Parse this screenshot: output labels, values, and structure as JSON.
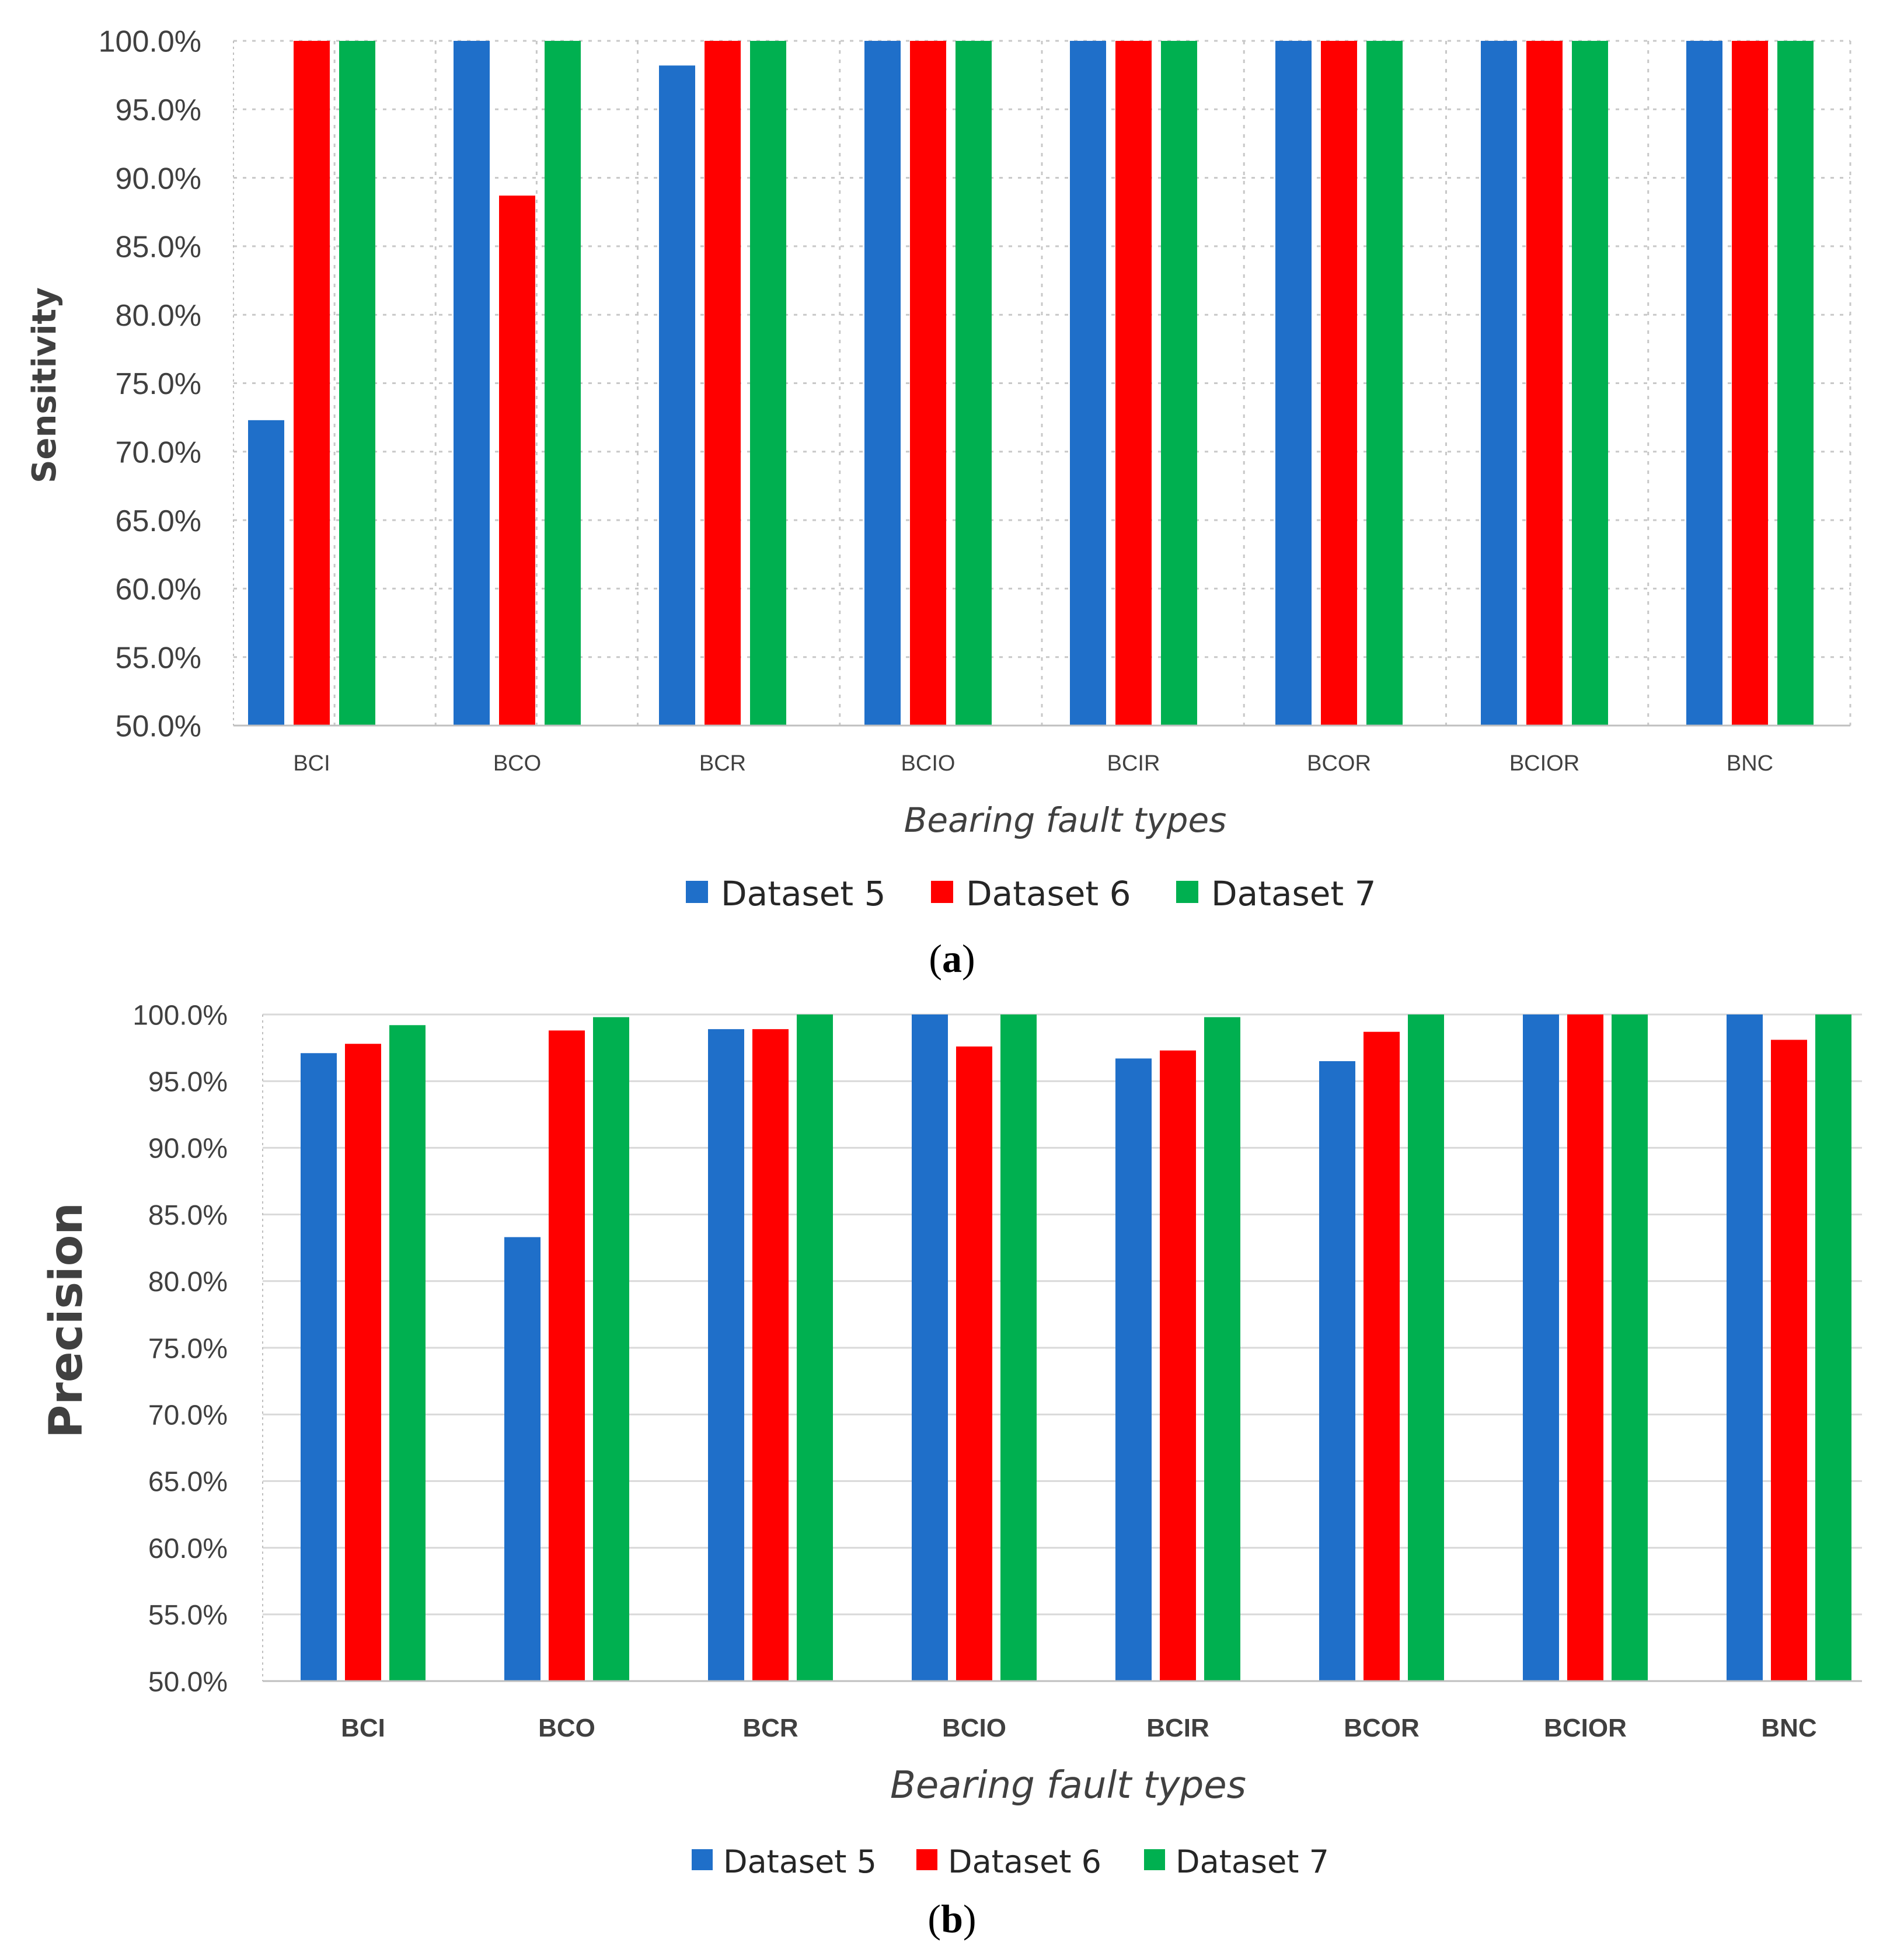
{
  "chart_data": [
    {
      "type": "bar",
      "panel_label": "a",
      "title": "",
      "xlabel": "Bearing fault types",
      "ylabel": "Sensitivity",
      "ylim": [
        0.5,
        1.0
      ],
      "ytick_step": 0.05,
      "ytick_labels": [
        "50.0%",
        "55.0%",
        "60.0%",
        "65.0%",
        "70.0%",
        "75.0%",
        "80.0%",
        "85.0%",
        "90.0%",
        "95.0%",
        "100.0%"
      ],
      "grid": true,
      "legend_position": "bottom",
      "categories": [
        "BCI",
        "BCO",
        "BCR",
        "BCIO",
        "BCIR",
        "BCOR",
        "BCIOR",
        "BNC"
      ],
      "series": [
        {
          "name": "Dataset 5",
          "color": "#1F6FC9",
          "values": [
            0.723,
            1.0,
            0.982,
            1.0,
            1.0,
            1.0,
            1.0,
            1.0
          ]
        },
        {
          "name": "Dataset 6",
          "color": "#FF0000",
          "values": [
            1.0,
            0.887,
            1.0,
            1.0,
            1.0,
            1.0,
            1.0,
            1.0
          ]
        },
        {
          "name": "Dataset 7",
          "color": "#00B050",
          "values": [
            1.0,
            1.0,
            1.0,
            1.0,
            1.0,
            1.0,
            1.0,
            1.0
          ]
        }
      ]
    },
    {
      "type": "bar",
      "panel_label": "b",
      "title": "",
      "xlabel": "Bearing fault types",
      "ylabel": "Precision",
      "ylim": [
        0.5,
        1.0
      ],
      "ytick_step": 0.05,
      "ytick_labels": [
        "50.0%",
        "55.0%",
        "60.0%",
        "65.0%",
        "70.0%",
        "75.0%",
        "80.0%",
        "85.0%",
        "90.0%",
        "95.0%",
        "100.0%"
      ],
      "grid": true,
      "legend_position": "bottom",
      "categories": [
        "BCI",
        "BCO",
        "BCR",
        "BCIO",
        "BCIR",
        "BCOR",
        "BCIOR",
        "BNC"
      ],
      "series": [
        {
          "name": "Dataset 5",
          "color": "#1F6FC9",
          "values": [
            0.971,
            0.833,
            0.989,
            1.0,
            0.967,
            0.965,
            1.0,
            1.0
          ]
        },
        {
          "name": "Dataset 6",
          "color": "#FF0000",
          "values": [
            0.978,
            0.988,
            0.989,
            0.976,
            0.973,
            0.987,
            1.0,
            0.981
          ]
        },
        {
          "name": "Dataset 7",
          "color": "#00B050",
          "values": [
            0.992,
            0.998,
            1.0,
            1.0,
            0.998,
            1.0,
            1.0,
            1.0
          ]
        }
      ]
    }
  ]
}
